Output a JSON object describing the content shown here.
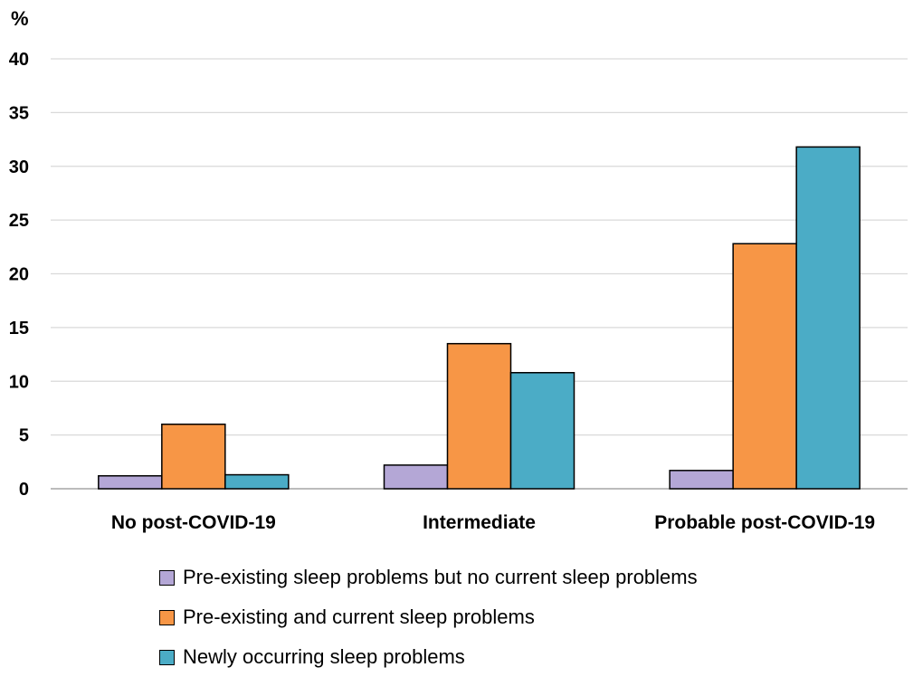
{
  "chart_data": {
    "type": "bar",
    "y_unit_label": "%",
    "categories": [
      "No post-COVID-19",
      "Intermediate",
      "Probable post-COVID-19"
    ],
    "series": [
      {
        "name": "Pre-existing sleep problems but no current sleep problems",
        "color": "#b4a7d6",
        "values": [
          1.2,
          2.2,
          1.7
        ]
      },
      {
        "name": "Pre-existing and current sleep problems",
        "color": "#f79646",
        "values": [
          6.0,
          13.5,
          22.8
        ]
      },
      {
        "name": "Newly occurring sleep problems",
        "color": "#4bacc6",
        "values": [
          1.3,
          10.8,
          31.8
        ]
      }
    ],
    "ylim": [
      0,
      40
    ],
    "yticks": [
      0,
      5,
      10,
      15,
      20,
      25,
      30,
      35,
      40
    ],
    "grid": true,
    "legend_position": "bottom"
  }
}
